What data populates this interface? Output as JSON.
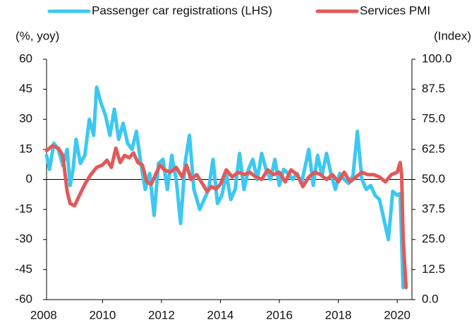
{
  "chart_data": {
    "type": "line",
    "y_label": "(%, yoy)",
    "y2_label": "(Index)",
    "xlim": [
      2008.1,
      2020.5
    ],
    "xticks": [
      2008,
      2010,
      2012,
      2014,
      2016,
      2018,
      2020
    ],
    "ylim": [
      -60,
      60
    ],
    "yticks": [
      -60,
      -45,
      -30,
      -15,
      0,
      15,
      30,
      45,
      60
    ],
    "y2lim": [
      0,
      100
    ],
    "y2ticks": [
      {
        "value": 0,
        "label": "0.0"
      },
      12.5,
      {
        "value": 25,
        "label": "25.0"
      },
      37.5,
      {
        "value": 50,
        "label": "50.0"
      },
      62.5,
      {
        "value": 75,
        "label": "75.0"
      },
      87.5,
      {
        "value": 100,
        "label": "100.0"
      }
    ],
    "series": [
      {
        "name": "Passenger car registrations (LHS)",
        "color": "#3cc8f0",
        "axis": "y",
        "x": [
          2008.1,
          2008.2,
          2008.35,
          2008.5,
          2008.65,
          2008.8,
          2008.9,
          2009.0,
          2009.1,
          2009.25,
          2009.4,
          2009.55,
          2009.7,
          2009.8,
          2009.95,
          2010.1,
          2010.25,
          2010.4,
          2010.55,
          2010.7,
          2010.85,
          2011.0,
          2011.15,
          2011.3,
          2011.45,
          2011.6,
          2011.75,
          2011.9,
          2012.05,
          2012.2,
          2012.35,
          2012.5,
          2012.65,
          2012.8,
          2012.95,
          2013.1,
          2013.3,
          2013.45,
          2013.6,
          2013.75,
          2013.9,
          2014.05,
          2014.2,
          2014.35,
          2014.5,
          2014.65,
          2014.8,
          2014.95,
          2015.1,
          2015.25,
          2015.4,
          2015.55,
          2015.7,
          2015.85,
          2016.0,
          2016.15,
          2016.3,
          2016.45,
          2016.6,
          2016.75,
          2016.9,
          2017.0,
          2017.15,
          2017.3,
          2017.45,
          2017.6,
          2017.75,
          2017.9,
          2018.05,
          2018.2,
          2018.35,
          2018.5,
          2018.65,
          2018.8,
          2018.95,
          2019.1,
          2019.25,
          2019.4,
          2019.55,
          2019.7,
          2019.85,
          2020.0,
          2020.1,
          2020.2,
          2020.3
        ],
        "values": [
          12,
          5,
          18,
          15,
          7,
          15,
          -3,
          5,
          20,
          8,
          12,
          30,
          22,
          46,
          38,
          32,
          22,
          35,
          20,
          28,
          18,
          15,
          24,
          8,
          -5,
          3,
          -18,
          8,
          10,
          -5,
          12,
          0,
          -22,
          8,
          22,
          -5,
          -15,
          -10,
          -5,
          10,
          -12,
          -8,
          3,
          -10,
          -5,
          13,
          -5,
          5,
          10,
          0,
          13,
          5,
          0,
          10,
          -3,
          5,
          3,
          0,
          3,
          -2,
          8,
          15,
          -3,
          12,
          2,
          13,
          3,
          -5,
          3,
          0,
          -2,
          2,
          24,
          0,
          -5,
          -3,
          -8,
          -10,
          -20,
          -30,
          -6,
          -8,
          -7,
          -54,
          -52
        ]
      },
      {
        "name": "Services PMI",
        "color": "#e05a5a",
        "axis": "y2",
        "x": [
          2008.1,
          2008.3,
          2008.5,
          2008.65,
          2008.8,
          2008.9,
          2009.05,
          2009.2,
          2009.4,
          2009.6,
          2009.8,
          2010.0,
          2010.15,
          2010.3,
          2010.45,
          2010.6,
          2010.75,
          2010.9,
          2011.05,
          2011.2,
          2011.35,
          2011.5,
          2011.65,
          2011.8,
          2011.95,
          2012.1,
          2012.3,
          2012.5,
          2012.7,
          2012.85,
          2013.0,
          2013.2,
          2013.4,
          2013.55,
          2013.7,
          2013.85,
          2014.0,
          2014.2,
          2014.4,
          2014.6,
          2014.8,
          2015.0,
          2015.2,
          2015.4,
          2015.6,
          2015.8,
          2016.0,
          2016.2,
          2016.4,
          2016.6,
          2016.8,
          2017.0,
          2017.2,
          2017.4,
          2017.6,
          2017.8,
          2018.0,
          2018.2,
          2018.4,
          2018.6,
          2018.8,
          2019.0,
          2019.2,
          2019.4,
          2019.6,
          2019.8,
          2020.0,
          2020.1,
          2020.15,
          2020.2,
          2020.3
        ],
        "values": [
          62,
          64,
          63,
          60,
          45,
          40,
          39,
          43,
          48,
          52,
          55,
          56,
          58,
          55,
          63,
          57,
          60,
          59,
          61,
          57,
          56,
          49,
          48,
          52,
          56,
          54,
          53,
          55,
          51,
          56,
          50,
          52,
          48,
          45,
          47,
          46,
          48,
          54,
          51,
          53,
          52,
          53,
          51,
          50,
          54,
          52,
          53,
          49,
          54,
          52,
          47,
          51,
          53,
          52,
          50,
          52,
          49,
          53,
          49,
          51,
          53,
          52,
          52,
          51,
          49,
          52,
          53,
          57,
          52,
          26,
          5
        ]
      }
    ]
  }
}
